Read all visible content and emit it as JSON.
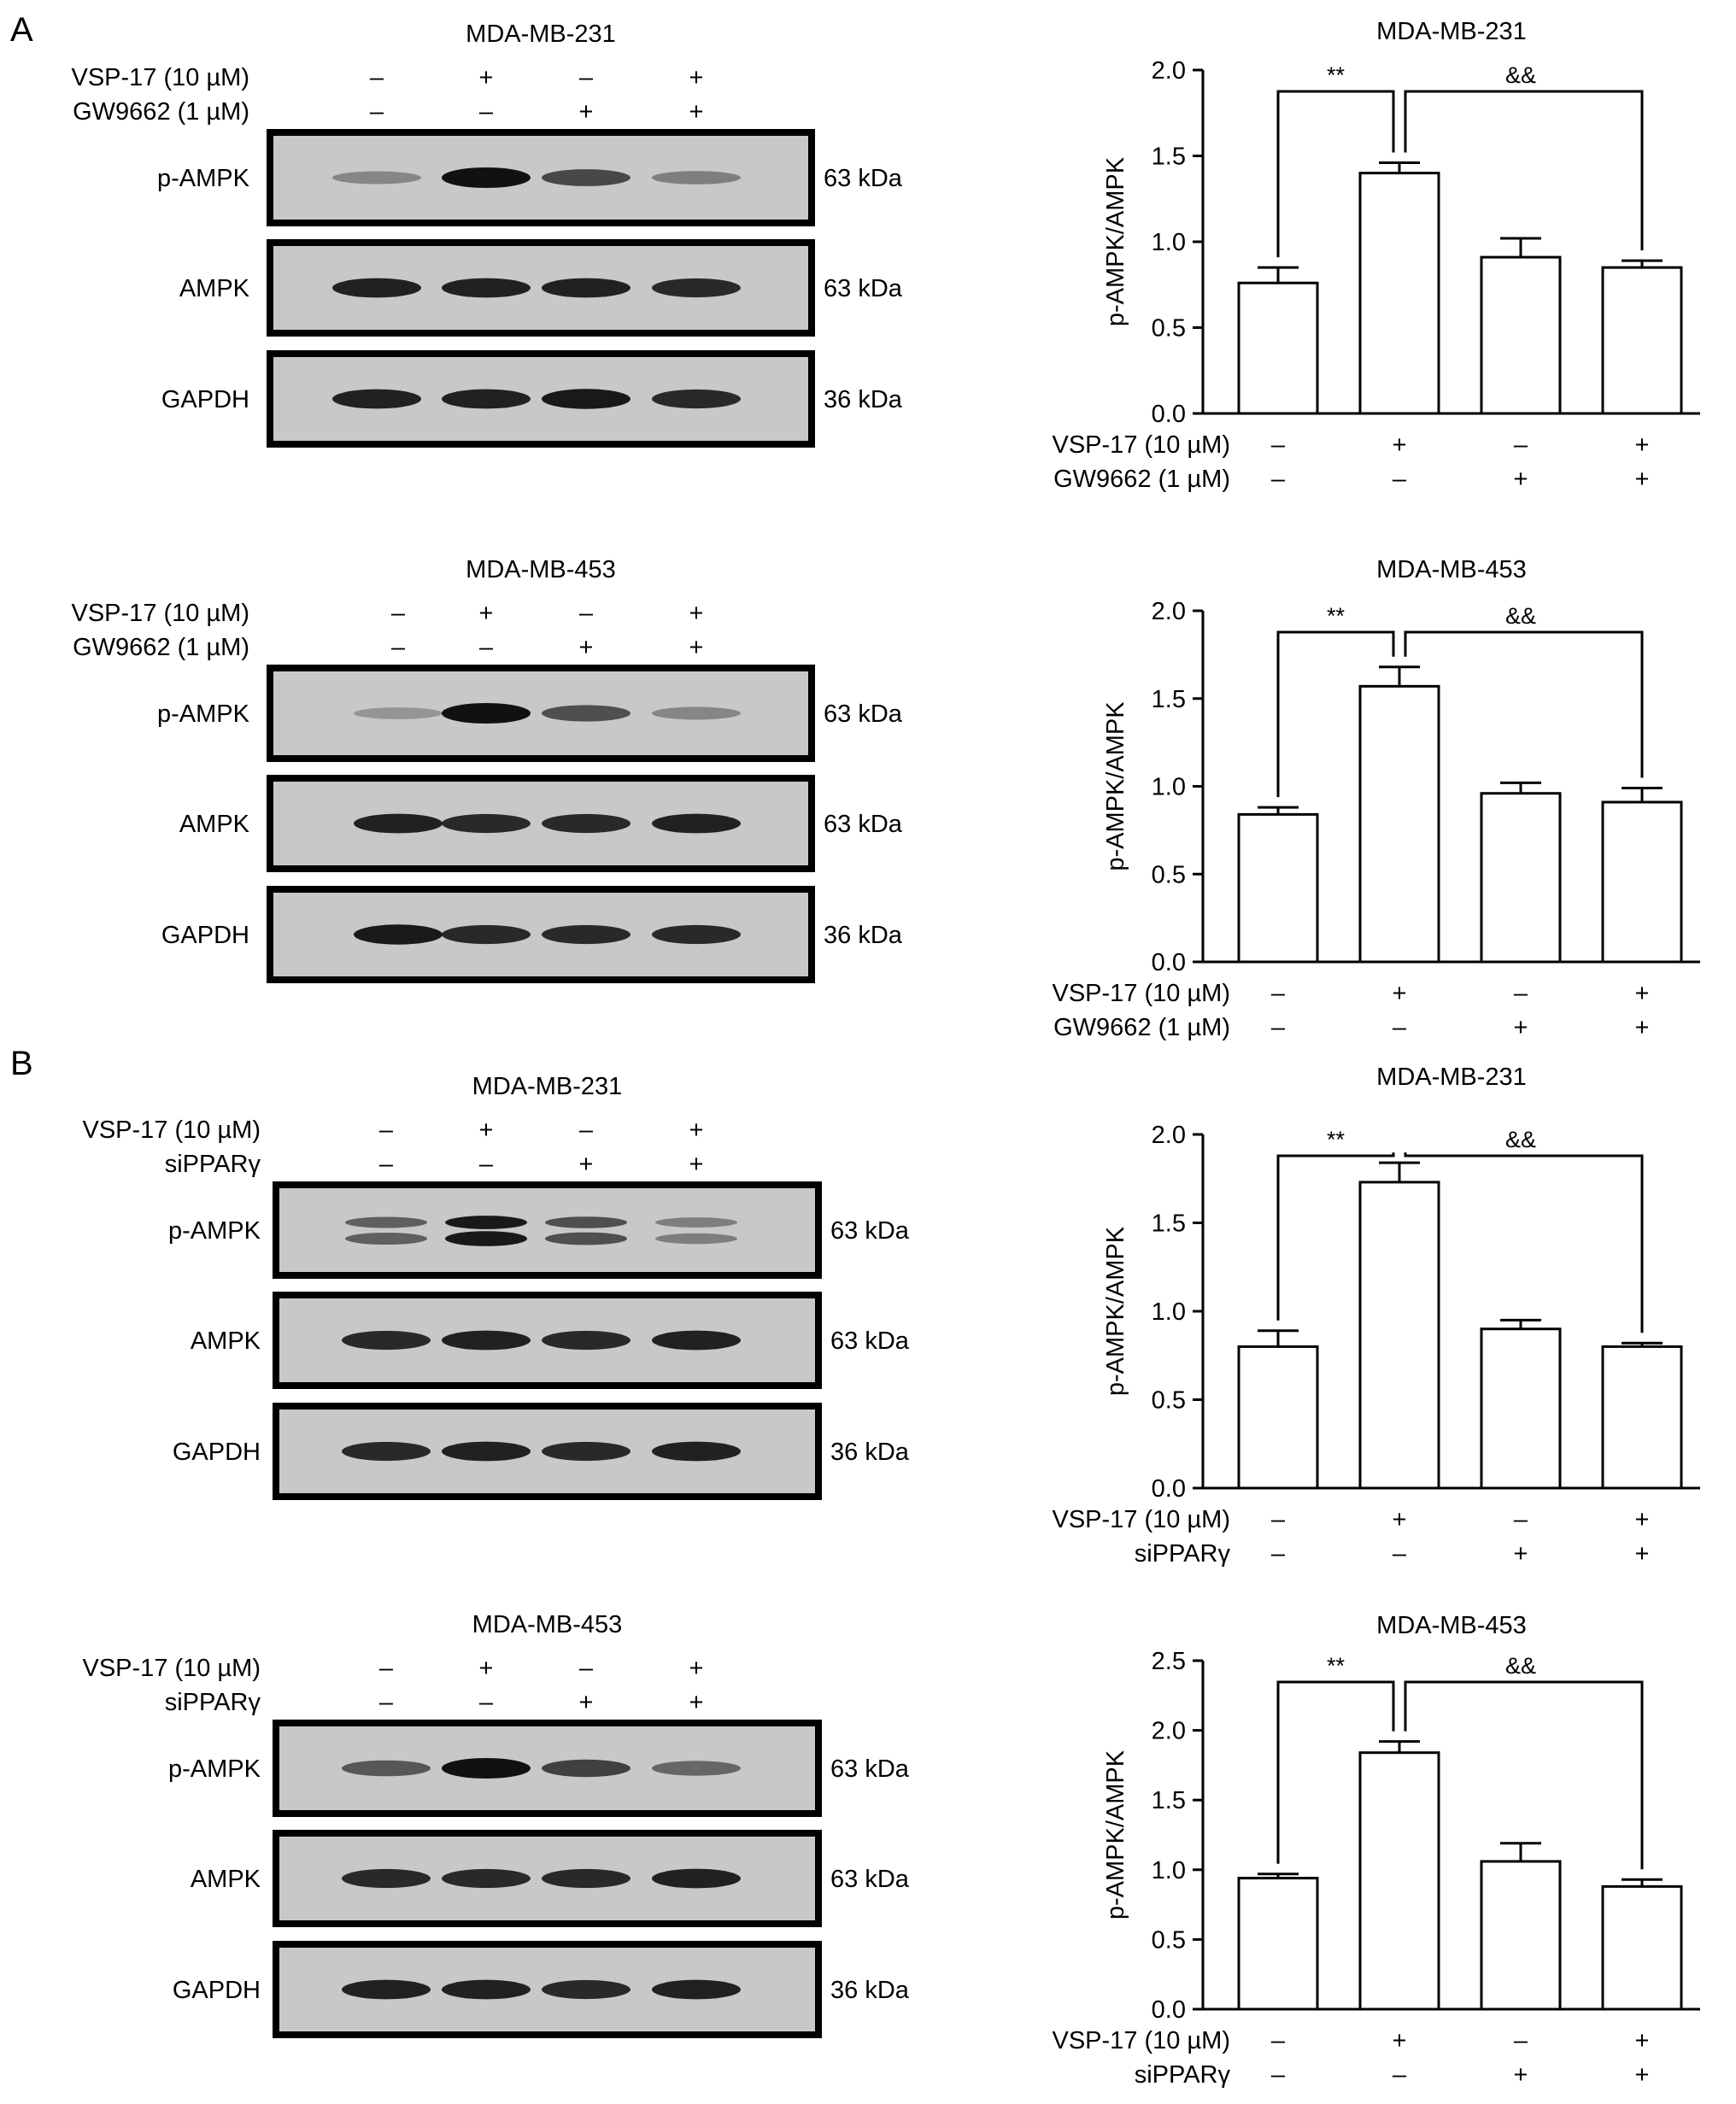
{
  "panel_labels": [
    "A",
    "B"
  ],
  "blots": [
    {
      "cell_line": "MDA-MB-231",
      "row_labels": [
        "VSP-17 (10 µM)",
        "GW9662 (1 µM)"
      ],
      "signs": [
        [
          "–",
          "+",
          "–",
          "+"
        ],
        [
          "–",
          "–",
          "+",
          "+"
        ]
      ],
      "bands": [
        {
          "label": "p-AMPK",
          "size": "63 kDa",
          "intensity": [
            0.25,
            1.0,
            0.65,
            0.3
          ],
          "doublet": false
        },
        {
          "label": "AMPK",
          "size": "63 kDa",
          "intensity": [
            0.9,
            0.9,
            0.9,
            0.85
          ],
          "doublet": false
        },
        {
          "label": "GAPDH",
          "size": "36 kDa",
          "intensity": [
            0.9,
            0.9,
            0.95,
            0.85
          ],
          "doublet": false
        }
      ]
    },
    {
      "cell_line": "MDA-MB-453",
      "row_labels": [
        "VSP-17 (10 µM)",
        "GW9662 (1 µM)"
      ],
      "signs": [
        [
          "–",
          "+",
          "–",
          "+"
        ],
        [
          "–",
          "–",
          "+",
          "+"
        ]
      ],
      "bands": [
        {
          "label": "p-AMPK",
          "size": "63 kDa",
          "intensity": [
            0.15,
            1.0,
            0.6,
            0.25
          ],
          "doublet": false
        },
        {
          "label": "AMPK",
          "size": "63 kDa",
          "intensity": [
            0.9,
            0.85,
            0.85,
            0.9
          ],
          "doublet": false
        },
        {
          "label": "GAPDH",
          "size": "36 kDa",
          "intensity": [
            0.95,
            0.85,
            0.85,
            0.85
          ],
          "doublet": false
        }
      ]
    },
    {
      "cell_line": "MDA-MB-231",
      "row_labels": [
        "VSP-17 (10 µM)",
        "siPPARγ"
      ],
      "signs": [
        [
          "–",
          "+",
          "–",
          "+"
        ],
        [
          "–",
          "–",
          "+",
          "+"
        ]
      ],
      "bands": [
        {
          "label": "p-AMPK",
          "size": "63 kDa",
          "intensity": [
            0.5,
            0.95,
            0.6,
            0.3
          ],
          "doublet": true
        },
        {
          "label": "AMPK",
          "size": "63 kDa",
          "intensity": [
            0.85,
            0.9,
            0.85,
            0.9
          ],
          "doublet": false
        },
        {
          "label": "GAPDH",
          "size": "36 kDa",
          "intensity": [
            0.85,
            0.9,
            0.85,
            0.9
          ],
          "doublet": false
        }
      ]
    },
    {
      "cell_line": "MDA-MB-453",
      "row_labels": [
        "VSP-17 (10 µM)",
        "siPPARγ"
      ],
      "signs": [
        [
          "–",
          "+",
          "–",
          "+"
        ],
        [
          "–",
          "–",
          "+",
          "+"
        ]
      ],
      "bands": [
        {
          "label": "p-AMPK",
          "size": "63 kDa",
          "intensity": [
            0.55,
            1.0,
            0.7,
            0.45
          ],
          "doublet": false
        },
        {
          "label": "AMPK",
          "size": "63 kDa",
          "intensity": [
            0.85,
            0.85,
            0.85,
            0.9
          ],
          "doublet": false
        },
        {
          "label": "GAPDH",
          "size": "36 kDa",
          "intensity": [
            0.9,
            0.9,
            0.85,
            0.9
          ],
          "doublet": false
        }
      ]
    }
  ],
  "chart_data": [
    {
      "type": "bar",
      "title": "MDA-MB-231",
      "ylabel": "p-AMPK/AMPK",
      "ylim": [
        0,
        2.0
      ],
      "yticks": [
        "0.0",
        "0.5",
        "1.0",
        "1.5",
        "2.0"
      ],
      "values": [
        0.76,
        1.4,
        0.91,
        0.85
      ],
      "errors": [
        0.09,
        0.06,
        0.11,
        0.04
      ],
      "row_labels": [
        "VSP-17 (10 µM)",
        "GW9662 (1 µM)"
      ],
      "signs": [
        [
          "–",
          "+",
          "–",
          "+"
        ],
        [
          "–",
          "–",
          "+",
          "+"
        ]
      ],
      "annotations": [
        {
          "text": "**",
          "from": 0,
          "to": 1
        },
        {
          "text": "&&",
          "from": 1,
          "to": 3
        }
      ]
    },
    {
      "type": "bar",
      "title": "MDA-MB-453",
      "ylabel": "p-AMPK/AMPK",
      "ylim": [
        0,
        2.0
      ],
      "yticks": [
        "0.0",
        "0.5",
        "1.0",
        "1.5",
        "2.0"
      ],
      "values": [
        0.84,
        1.57,
        0.96,
        0.91
      ],
      "errors": [
        0.04,
        0.11,
        0.06,
        0.08
      ],
      "row_labels": [
        "VSP-17 (10 µM)",
        "GW9662 (1 µM)"
      ],
      "signs": [
        [
          "–",
          "+",
          "–",
          "+"
        ],
        [
          "–",
          "–",
          "+",
          "+"
        ]
      ],
      "annotations": [
        {
          "text": "**",
          "from": 0,
          "to": 1
        },
        {
          "text": "&&",
          "from": 1,
          "to": 3
        }
      ]
    },
    {
      "type": "bar",
      "title": "MDA-MB-231",
      "ylabel": "p-AMPK/AMPK",
      "ylim": [
        0,
        2.0
      ],
      "yticks": [
        "0.0",
        "0.5",
        "1.0",
        "1.5",
        "2.0"
      ],
      "values": [
        0.8,
        1.73,
        0.9,
        0.8
      ],
      "errors": [
        0.09,
        0.11,
        0.05,
        0.02
      ],
      "row_labels": [
        "VSP-17 (10 µM)",
        "siPPARγ"
      ],
      "signs": [
        [
          "–",
          "+",
          "–",
          "+"
        ],
        [
          "–",
          "–",
          "+",
          "+"
        ]
      ],
      "annotations": [
        {
          "text": "**",
          "from": 0,
          "to": 1
        },
        {
          "text": "&&",
          "from": 1,
          "to": 3
        }
      ]
    },
    {
      "type": "bar",
      "title": "MDA-MB-453",
      "ylabel": "p-AMPK/AMPK",
      "ylim": [
        0,
        2.5
      ],
      "yticks": [
        "0.0",
        "0.5",
        "1.0",
        "1.5",
        "2.0",
        "2.5"
      ],
      "values": [
        0.94,
        1.84,
        1.06,
        0.88
      ],
      "errors": [
        0.03,
        0.08,
        0.13,
        0.05
      ],
      "row_labels": [
        "VSP-17 (10 µM)",
        "siPPARγ"
      ],
      "signs": [
        [
          "–",
          "+",
          "–",
          "+"
        ],
        [
          "–",
          "–",
          "+",
          "+"
        ]
      ],
      "annotations": [
        {
          "text": "**",
          "from": 0,
          "to": 1
        },
        {
          "text": "&&",
          "from": 1,
          "to": 3
        }
      ]
    }
  ]
}
